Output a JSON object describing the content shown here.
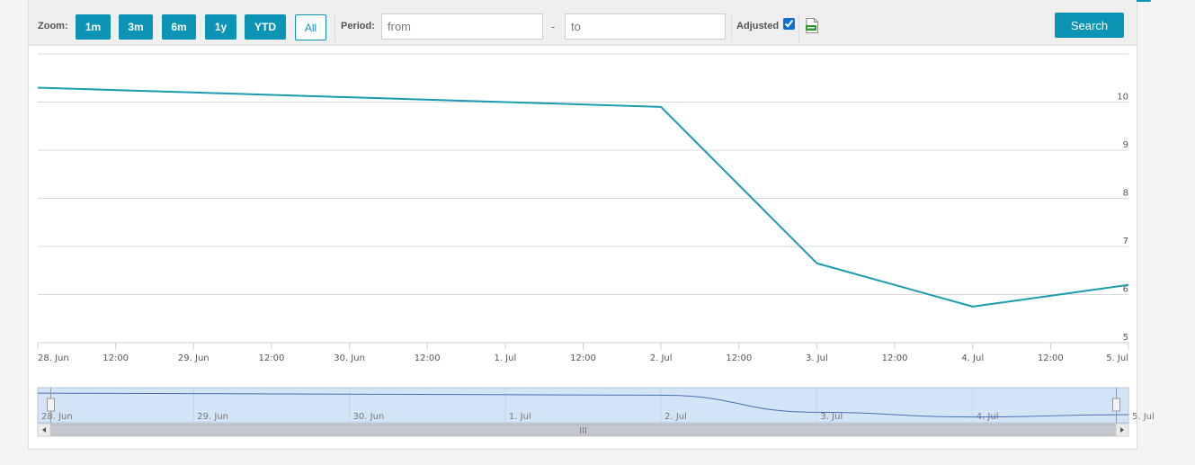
{
  "toolbar": {
    "zoom_label": "Zoom:",
    "zoom_buttons": [
      {
        "label": "1m",
        "active": false
      },
      {
        "label": "3m",
        "active": false
      },
      {
        "label": "6m",
        "active": false
      },
      {
        "label": "1y",
        "active": false
      },
      {
        "label": "YTD",
        "active": false
      },
      {
        "label": "All",
        "active": true
      }
    ],
    "period_label": "Period:",
    "from_placeholder": "from",
    "to_placeholder": "to",
    "period_separator": "-",
    "adjusted_label": "Adjusted",
    "adjusted_checked": true,
    "export_icon": "csv-file-icon",
    "search_label": "Search"
  },
  "colors": {
    "accent": "#0b94b4",
    "line": "#1a9bb0",
    "navigator_fill": "#d4e4f7",
    "navigator_line": "#4a6fb5"
  },
  "chart_data": {
    "type": "line",
    "x": [
      "2024-06-28T00:00",
      "2024-07-02T00:00",
      "2024-07-03T00:00",
      "2024-07-04T00:00",
      "2024-07-05T00:00"
    ],
    "y": [
      10.3,
      9.9,
      6.65,
      5.75,
      6.2
    ],
    "x_tick_labels": [
      "28. Jun",
      "12:00",
      "29. Jun",
      "12:00",
      "30. Jun",
      "12:00",
      "1. Jul",
      "12:00",
      "2. Jul",
      "12:00",
      "3. Jul",
      "12:00",
      "4. Jul",
      "12:00",
      "5. Jul"
    ],
    "y_tick_labels": [
      "5",
      "6",
      "7",
      "8",
      "9",
      "10"
    ],
    "ylim": [
      5,
      11
    ],
    "y_axis_side": "right",
    "grid": true,
    "navigator": {
      "tick_labels": [
        "28. Jun",
        "29. Jun",
        "30. Jun",
        "1. Jul",
        "2. Jul",
        "3. Jul",
        "4. Jul",
        "5. Jul"
      ],
      "scrollbar_grip": "III"
    }
  }
}
